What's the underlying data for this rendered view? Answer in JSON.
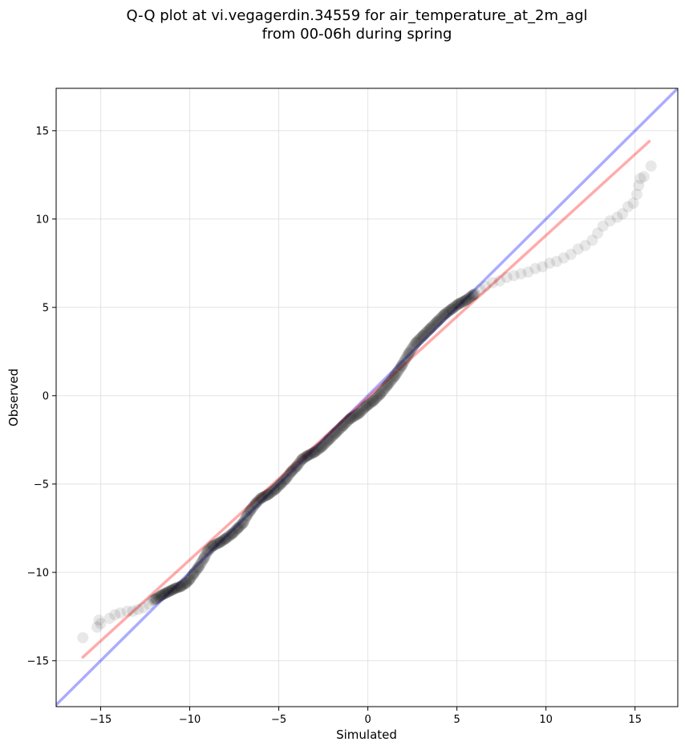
{
  "chart_data": {
    "type": "scatter",
    "title_lines": [
      "Q-Q plot at vi.vegagerdin.34559 for air_temperature_at_2m_agl",
      "from 00-06h during spring"
    ],
    "xlabel": "Simulated",
    "ylabel": "Observed",
    "xlim": [
      -17.5,
      17.4
    ],
    "ylim": [
      -17.6,
      17.4
    ],
    "xticks": [
      -15,
      -10,
      -5,
      0,
      5,
      10,
      15
    ],
    "yticks": [
      -15,
      -10,
      -5,
      0,
      5,
      10,
      15
    ],
    "xtick_labels": [
      "−15",
      "−10",
      "−5",
      "0",
      "5",
      "10",
      "15"
    ],
    "ytick_labels": [
      "−15",
      "−10",
      "−5",
      "0",
      "5",
      "10",
      "15"
    ],
    "grid": true,
    "reference_line": {
      "name": "1:1",
      "color": "#0000ff",
      "opacity": 0.33,
      "from": [
        -17.5,
        -17.5
      ],
      "to": [
        17.4,
        17.4
      ]
    },
    "fit_line": {
      "color": "#ff0000",
      "opacity": 0.33,
      "from": [
        -16.0,
        -14.8
      ],
      "to": [
        15.8,
        14.4
      ]
    },
    "point_color": "#000000",
    "dense_points": {
      "x_range": [
        -12.0,
        6.0
      ],
      "count": 300,
      "opacity": 0.12
    },
    "points": [
      [
        -16.0,
        -13.7
      ],
      [
        -15.2,
        -13.1
      ],
      [
        -15.0,
        -12.9
      ],
      [
        -15.1,
        -12.7
      ],
      [
        -14.5,
        -12.6
      ],
      [
        -14.2,
        -12.4
      ],
      [
        -13.9,
        -12.3
      ],
      [
        -13.5,
        -12.2
      ],
      [
        -13.2,
        -12.2
      ],
      [
        -12.9,
        -12.1
      ],
      [
        -12.6,
        -12.0
      ],
      [
        -12.3,
        -11.8
      ],
      [
        -12.1,
        -11.6
      ],
      [
        -11.9,
        -11.5
      ],
      [
        -11.6,
        -11.3
      ],
      [
        -11.4,
        -11.2
      ],
      [
        -11.2,
        -11.1
      ],
      [
        -11.0,
        -11.0
      ],
      [
        -10.8,
        -10.9
      ],
      [
        -10.5,
        -10.8
      ],
      [
        -10.2,
        -10.6
      ],
      [
        -10.0,
        -10.4
      ],
      [
        -9.8,
        -10.1
      ],
      [
        -9.5,
        -9.7
      ],
      [
        -9.2,
        -9.2
      ],
      [
        -9.0,
        -8.8
      ],
      [
        -8.7,
        -8.5
      ],
      [
        -8.3,
        -8.3
      ],
      [
        -8.0,
        -8.1
      ],
      [
        -7.6,
        -7.8
      ],
      [
        -7.3,
        -7.5
      ],
      [
        -7.0,
        -7.2
      ],
      [
        -6.8,
        -6.8
      ],
      [
        -6.6,
        -6.5
      ],
      [
        -6.3,
        -6.1
      ],
      [
        -6.0,
        -5.8
      ],
      [
        -5.6,
        -5.6
      ],
      [
        -5.2,
        -5.3
      ],
      [
        -4.9,
        -5.0
      ],
      [
        -4.6,
        -4.7
      ],
      [
        -4.3,
        -4.3
      ],
      [
        -4.0,
        -4.0
      ],
      [
        -3.7,
        -3.6
      ],
      [
        -3.4,
        -3.4
      ],
      [
        -3.0,
        -3.2
      ],
      [
        -2.6,
        -2.9
      ],
      [
        -2.2,
        -2.5
      ],
      [
        -1.8,
        -2.1
      ],
      [
        -1.4,
        -1.7
      ],
      [
        -1.0,
        -1.3
      ],
      [
        -0.5,
        -1.0
      ],
      [
        -0.1,
        -0.6
      ],
      [
        0.3,
        -0.3
      ],
      [
        0.7,
        0.1
      ],
      [
        1.1,
        0.6
      ],
      [
        1.5,
        1.1
      ],
      [
        1.9,
        1.7
      ],
      [
        2.3,
        2.4
      ],
      [
        2.7,
        3.0
      ],
      [
        3.1,
        3.4
      ],
      [
        3.5,
        3.8
      ],
      [
        3.9,
        4.2
      ],
      [
        4.3,
        4.6
      ],
      [
        4.7,
        4.9
      ],
      [
        5.1,
        5.2
      ],
      [
        5.5,
        5.4
      ],
      [
        5.9,
        5.7
      ],
      [
        6.3,
        6.0
      ],
      [
        6.6,
        6.2
      ],
      [
        7.0,
        6.4
      ],
      [
        7.4,
        6.5
      ],
      [
        7.8,
        6.7
      ],
      [
        8.2,
        6.8
      ],
      [
        8.6,
        6.9
      ],
      [
        9.0,
        7.0
      ],
      [
        9.4,
        7.2
      ],
      [
        9.8,
        7.3
      ],
      [
        10.2,
        7.5
      ],
      [
        10.6,
        7.6
      ],
      [
        11.0,
        7.8
      ],
      [
        11.4,
        8.0
      ],
      [
        11.8,
        8.3
      ],
      [
        12.2,
        8.5
      ],
      [
        12.6,
        8.8
      ],
      [
        12.9,
        9.2
      ],
      [
        13.2,
        9.6
      ],
      [
        13.6,
        9.9
      ],
      [
        14.0,
        10.1
      ],
      [
        14.3,
        10.3
      ],
      [
        14.6,
        10.7
      ],
      [
        14.9,
        10.9
      ],
      [
        15.1,
        11.4
      ],
      [
        15.2,
        11.9
      ],
      [
        15.3,
        12.3
      ],
      [
        15.5,
        12.4
      ],
      [
        15.9,
        13.0
      ]
    ]
  }
}
